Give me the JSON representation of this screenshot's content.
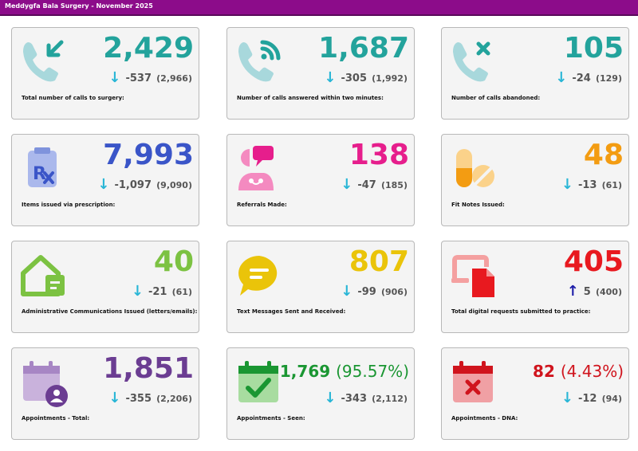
{
  "header": {
    "title": "Meddygfa Bala Surgery - November 2025"
  },
  "colors": {
    "header_bg": "#8c0c8a",
    "teal": "#23a39c",
    "blue": "#3a55c8",
    "pink": "#e61e8c",
    "orange": "#f39c12",
    "green": "#7cc242",
    "yellow": "#eac40a",
    "red": "#e8191f",
    "purple": "#6b3d92",
    "dark_green": "#1a9632",
    "dark_red": "#d0141d",
    "arrow_down": "#29b6d6",
    "arrow_up": "#1c1ca8"
  },
  "cards": [
    {
      "value": "2,429",
      "pct": "",
      "arrow": "↓",
      "delta": "-537",
      "previous": "(2,966)",
      "label": "Total number of calls to surgery:",
      "icon": "phone-incoming-icon",
      "color": "teal"
    },
    {
      "value": "1,687",
      "pct": "",
      "arrow": "↓",
      "delta": "-305",
      "previous": "(1,992)",
      "label": "Number of calls answered within two minutes:",
      "icon": "phone-answered-icon",
      "color": "teal"
    },
    {
      "value": "105",
      "pct": "",
      "arrow": "↓",
      "delta": "-24",
      "previous": "(129)",
      "label": "Number of calls abandoned:",
      "icon": "phone-missed-icon",
      "color": "teal"
    },
    {
      "value": "7,993",
      "pct": "",
      "arrow": "↓",
      "delta": "-1,097",
      "previous": "(9,090)",
      "label": "Items issued via prescription:",
      "icon": "prescription-icon",
      "color": "blue"
    },
    {
      "value": "138",
      "pct": "",
      "arrow": "↓",
      "delta": "-47",
      "previous": "(185)",
      "label": "Referrals Made:",
      "icon": "referral-icon",
      "color": "pink"
    },
    {
      "value": "48",
      "pct": "",
      "arrow": "↓",
      "delta": "-13",
      "previous": "(61)",
      "label": "Fit Notes Issued:",
      "icon": "pills-icon",
      "color": "orange"
    },
    {
      "value": "40",
      "pct": "",
      "arrow": "↓",
      "delta": "-21",
      "previous": "(61)",
      "label": "Administrative Communications Issued (letters/emails):",
      "icon": "house-mail-icon",
      "color": "green"
    },
    {
      "value": "807",
      "pct": "",
      "arrow": "↓",
      "delta": "-99",
      "previous": "(906)",
      "label": "Text Messages Sent and Received:",
      "icon": "chat-bubble-icon",
      "color": "yellow"
    },
    {
      "value": "405",
      "pct": "",
      "arrow": "↑",
      "delta": "5",
      "previous": "(400)",
      "label": "Total digital requests submitted to practice:",
      "icon": "digital-request-icon",
      "color": "red"
    },
    {
      "value": "1,851",
      "pct": "",
      "arrow": "↓",
      "delta": "-355",
      "previous": "(2,206)",
      "label": "Appointments - Total:",
      "icon": "calendar-person-icon",
      "color": "purple"
    },
    {
      "value": "1,769",
      "pct": "(95.57%)",
      "arrow": "↓",
      "delta": "-343",
      "previous": "(2,112)",
      "label": "Appointments - Seen:",
      "icon": "calendar-check-icon",
      "color": "dark_green"
    },
    {
      "value": "82",
      "pct": "(4.43%)",
      "arrow": "↓",
      "delta": "-12",
      "previous": "(94)",
      "label": "Appointments - DNA:",
      "icon": "calendar-cross-icon",
      "color": "dark_red"
    }
  ]
}
